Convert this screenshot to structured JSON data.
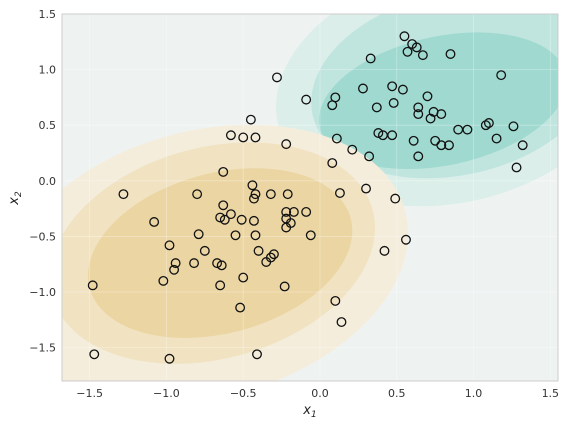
{
  "chart_data": {
    "type": "scatter",
    "title": "",
    "xlabel": {
      "base": "x",
      "sub": "1"
    },
    "ylabel": {
      "base": "x",
      "sub": "2"
    },
    "xlim": [
      -1.68,
      1.55
    ],
    "ylim": [
      -1.8,
      1.5
    ],
    "xticks": [
      "−1.5",
      "−1.0",
      "−0.5",
      "0.0",
      "0.5",
      "1.0",
      "1.5"
    ],
    "xtick_values": [
      -1.5,
      -1.0,
      -0.5,
      0.0,
      0.5,
      1.0,
      1.5
    ],
    "yticks": [
      "−1.5",
      "−1.0",
      "−0.5",
      "0.0",
      "0.5",
      "1.0",
      "1.5"
    ],
    "ytick_values": [
      -1.5,
      -1.0,
      -0.5,
      0.0,
      0.5,
      1.0,
      1.5
    ],
    "grid": true,
    "background_regions": {
      "description_free": true,
      "teal_levels": [
        {
          "cx": 0.85,
          "cy": 0.85,
          "rx": 1.15,
          "ry": 1.05,
          "angle": -12,
          "color": "#dbeee9"
        },
        {
          "cx": 0.88,
          "cy": 0.87,
          "rx": 0.95,
          "ry": 0.82,
          "angle": -12,
          "color": "#c0e5df"
        },
        {
          "cx": 0.8,
          "cy": 0.72,
          "rx": 0.82,
          "ry": 0.58,
          "angle": -12,
          "color": "#9fd9cf"
        }
      ],
      "sand_levels": [
        {
          "cx": -0.75,
          "cy": -0.75,
          "rx": 1.35,
          "ry": 1.2,
          "angle": -15,
          "color": "#f4eddc"
        },
        {
          "cx": -0.7,
          "cy": -0.65,
          "rx": 1.08,
          "ry": 0.95,
          "angle": -15,
          "color": "#f1e3c2"
        },
        {
          "cx": -0.65,
          "cy": -0.65,
          "rx": 0.88,
          "ry": 0.72,
          "angle": -15,
          "color": "#ebd5a3"
        }
      ],
      "base_color": "#eef3f2"
    },
    "points": [
      {
        "x": 0.55,
        "y": 1.3
      },
      {
        "x": 0.6,
        "y": 1.23
      },
      {
        "x": 0.63,
        "y": 1.2
      },
      {
        "x": 0.57,
        "y": 1.16
      },
      {
        "x": 0.67,
        "y": 1.13
      },
      {
        "x": 0.85,
        "y": 1.14
      },
      {
        "x": 0.33,
        "y": 1.1
      },
      {
        "x": 1.18,
        "y": 0.95
      },
      {
        "x": -0.28,
        "y": 0.93
      },
      {
        "x": 0.28,
        "y": 0.83
      },
      {
        "x": 0.47,
        "y": 0.85
      },
      {
        "x": 0.54,
        "y": 0.82
      },
      {
        "x": 0.7,
        "y": 0.76
      },
      {
        "x": 0.1,
        "y": 0.75
      },
      {
        "x": -0.09,
        "y": 0.73
      },
      {
        "x": 0.08,
        "y": 0.68
      },
      {
        "x": 0.48,
        "y": 0.7
      },
      {
        "x": 0.37,
        "y": 0.66
      },
      {
        "x": 0.64,
        "y": 0.66
      },
      {
        "x": 0.64,
        "y": 0.6
      },
      {
        "x": 0.74,
        "y": 0.62
      },
      {
        "x": 0.79,
        "y": 0.6
      },
      {
        "x": 0.72,
        "y": 0.56
      },
      {
        "x": -0.45,
        "y": 0.55
      },
      {
        "x": 1.1,
        "y": 0.52
      },
      {
        "x": 1.08,
        "y": 0.5
      },
      {
        "x": 1.26,
        "y": 0.49
      },
      {
        "x": 0.9,
        "y": 0.46
      },
      {
        "x": 0.96,
        "y": 0.46
      },
      {
        "x": -0.58,
        "y": 0.41
      },
      {
        "x": 0.38,
        "y": 0.43
      },
      {
        "x": 0.41,
        "y": 0.41
      },
      {
        "x": 0.47,
        "y": 0.41
      },
      {
        "x": -0.5,
        "y": 0.39
      },
      {
        "x": -0.42,
        "y": 0.39
      },
      {
        "x": 0.11,
        "y": 0.38
      },
      {
        "x": 0.61,
        "y": 0.36
      },
      {
        "x": 0.75,
        "y": 0.36
      },
      {
        "x": 1.15,
        "y": 0.38
      },
      {
        "x": -0.22,
        "y": 0.33
      },
      {
        "x": 0.79,
        "y": 0.32
      },
      {
        "x": 0.84,
        "y": 0.32
      },
      {
        "x": 1.32,
        "y": 0.32
      },
      {
        "x": 0.21,
        "y": 0.28
      },
      {
        "x": 0.32,
        "y": 0.22
      },
      {
        "x": 0.64,
        "y": 0.22
      },
      {
        "x": 0.08,
        "y": 0.16
      },
      {
        "x": 1.28,
        "y": 0.12
      },
      {
        "x": -0.63,
        "y": 0.08
      },
      {
        "x": -0.44,
        "y": -0.04
      },
      {
        "x": 0.3,
        "y": -0.07
      },
      {
        "x": -1.28,
        "y": -0.12
      },
      {
        "x": -0.8,
        "y": -0.12
      },
      {
        "x": -0.42,
        "y": -0.12
      },
      {
        "x": -0.32,
        "y": -0.12
      },
      {
        "x": -0.21,
        "y": -0.12
      },
      {
        "x": 0.13,
        "y": -0.11
      },
      {
        "x": 0.49,
        "y": -0.16
      },
      {
        "x": -0.43,
        "y": -0.16
      },
      {
        "x": -0.63,
        "y": -0.22
      },
      {
        "x": -0.58,
        "y": -0.3
      },
      {
        "x": -0.65,
        "y": -0.33
      },
      {
        "x": -0.62,
        "y": -0.35
      },
      {
        "x": -0.51,
        "y": -0.35
      },
      {
        "x": -0.22,
        "y": -0.28
      },
      {
        "x": -0.17,
        "y": -0.28
      },
      {
        "x": -0.09,
        "y": -0.28
      },
      {
        "x": -0.43,
        "y": -0.36
      },
      {
        "x": -0.22,
        "y": -0.34
      },
      {
        "x": -1.08,
        "y": -0.37
      },
      {
        "x": -0.19,
        "y": -0.38
      },
      {
        "x": -0.22,
        "y": -0.42
      },
      {
        "x": -0.79,
        "y": -0.48
      },
      {
        "x": -0.55,
        "y": -0.49
      },
      {
        "x": -0.06,
        "y": -0.49
      },
      {
        "x": -0.42,
        "y": -0.49
      },
      {
        "x": 0.56,
        "y": -0.53
      },
      {
        "x": -0.98,
        "y": -0.58
      },
      {
        "x": -0.75,
        "y": -0.63
      },
      {
        "x": -0.4,
        "y": -0.63
      },
      {
        "x": 0.42,
        "y": -0.63
      },
      {
        "x": -0.3,
        "y": -0.66
      },
      {
        "x": -0.32,
        "y": -0.69
      },
      {
        "x": -0.35,
        "y": -0.73
      },
      {
        "x": -0.94,
        "y": -0.74
      },
      {
        "x": -0.82,
        "y": -0.74
      },
      {
        "x": -0.67,
        "y": -0.74
      },
      {
        "x": -0.64,
        "y": -0.76
      },
      {
        "x": -0.95,
        "y": -0.8
      },
      {
        "x": -0.5,
        "y": -0.87
      },
      {
        "x": -1.02,
        "y": -0.9
      },
      {
        "x": -1.48,
        "y": -0.94
      },
      {
        "x": -0.65,
        "y": -0.94
      },
      {
        "x": -0.23,
        "y": -0.95
      },
      {
        "x": 0.1,
        "y": -1.08
      },
      {
        "x": -0.52,
        "y": -1.14
      },
      {
        "x": 0.14,
        "y": -1.27
      },
      {
        "x": -1.47,
        "y": -1.56
      },
      {
        "x": -0.41,
        "y": -1.56
      },
      {
        "x": -0.98,
        "y": -1.6
      }
    ],
    "point_style": {
      "face": "transparent",
      "edge": "#111111"
    }
  }
}
